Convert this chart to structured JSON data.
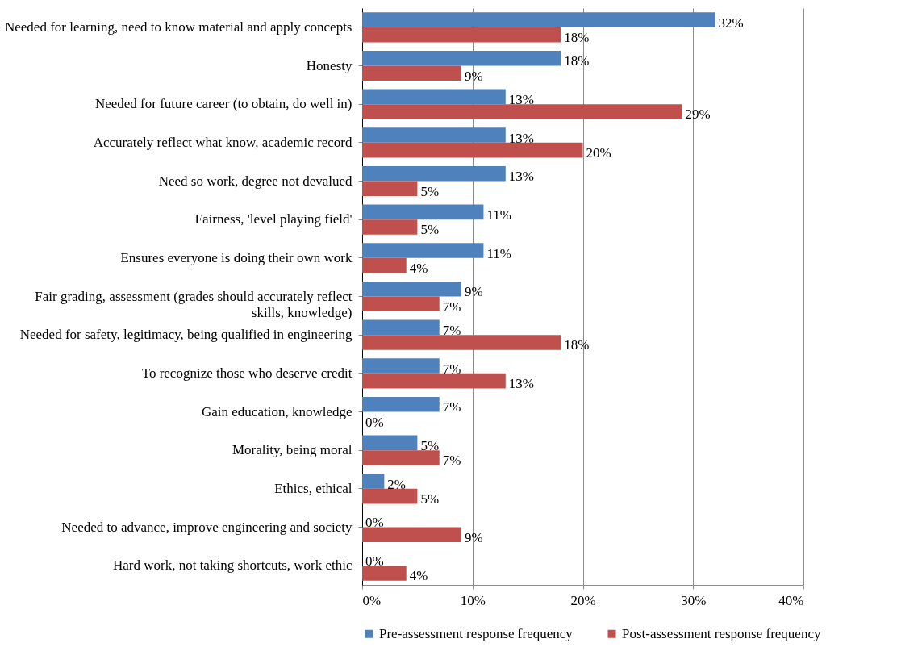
{
  "chart_data": {
    "type": "bar",
    "orientation": "horizontal",
    "categories": [
      "Needed for learning, need to know material and apply concepts",
      "Honesty",
      "Needed for future career (to obtain, do well in)",
      "Accurately reflect what know, academic record",
      "Need so work, degree not devalued",
      "Fairness, 'level playing field'",
      "Ensures everyone is doing their own work",
      "Fair grading, assessment (grades should accurately reflect skills, knowledge)",
      "Needed for safety, legitimacy, being qualified in engineering",
      "To recognize those who deserve credit",
      "Gain education, knowledge",
      "Morality, being moral",
      "Ethics, ethical",
      "Needed to advance, improve engineering and society",
      "Hard work, not taking shortcuts, work ethic"
    ],
    "series": [
      {
        "name": "Pre-assessment response frequency",
        "color": "#4f81bd",
        "values": [
          32,
          18,
          13,
          13,
          13,
          11,
          11,
          9,
          7,
          7,
          7,
          5,
          2,
          0,
          0
        ],
        "value_labels": [
          "32%",
          "18%",
          "13%",
          "13%",
          "13%",
          "11%",
          "11%",
          "9%",
          "7%",
          "7%",
          "7%",
          "5%",
          "2%",
          "0%",
          "0%"
        ]
      },
      {
        "name": "Post-assessment response frequency",
        "color": "#c0504d",
        "values": [
          18,
          9,
          29,
          20,
          5,
          5,
          4,
          7,
          18,
          13,
          0,
          7,
          5,
          9,
          4
        ],
        "value_labels": [
          "18%",
          "9%",
          "29%",
          "20%",
          "5%",
          "5%",
          "4%",
          "7%",
          "18%",
          "13%",
          "0%",
          "7%",
          "5%",
          "9%",
          "4%"
        ]
      }
    ],
    "xlim": [
      0,
      40
    ],
    "xticks": [
      {
        "value": 0,
        "label": "0%"
      },
      {
        "value": 10,
        "label": "10%"
      },
      {
        "value": 20,
        "label": "20%"
      },
      {
        "value": 30,
        "label": "30%"
      },
      {
        "value": 40,
        "label": "40%"
      }
    ],
    "grid": "x",
    "legend": "bottom"
  }
}
